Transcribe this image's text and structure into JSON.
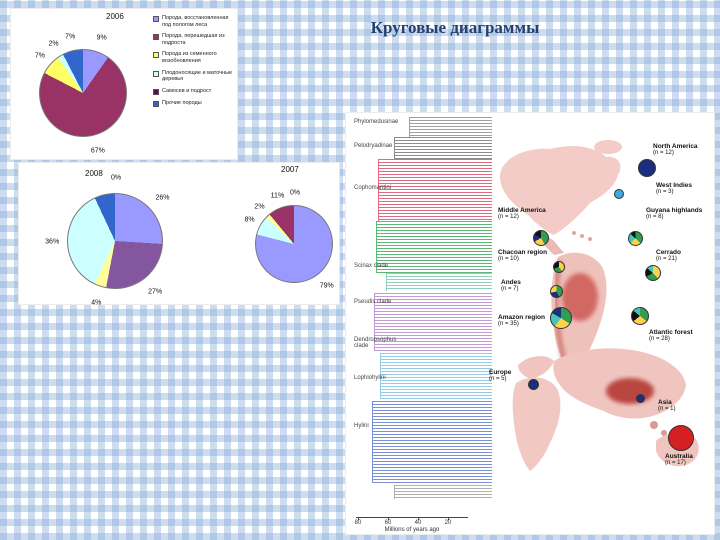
{
  "slide": {
    "title": "Круговые диаграммы"
  },
  "chart_data": [
    {
      "type": "pie",
      "title": "2006",
      "slices": [
        {
          "label": "9%",
          "value": 9,
          "color": "#9999FF"
        },
        {
          "label": "67%",
          "value": 67,
          "color": "#993366"
        },
        {
          "label": "7%",
          "value": 7,
          "color": "#FFFF66"
        },
        {
          "label": "2%",
          "value": 2,
          "color": "#CCFFFF"
        },
        {
          "label": "7%",
          "value": 7,
          "color": "#3366CC"
        }
      ],
      "legend": [
        {
          "label": "Порода, восстановленная под пологом леса",
          "color": "#9999FF"
        },
        {
          "label": "Порода, перешедшая из подроста",
          "color": "#993366"
        },
        {
          "label": "Порода из семенного возобновления",
          "color": "#FFFF66"
        },
        {
          "label": "Плодоносящие и маточные деревья",
          "color": "#CCFFFF"
        },
        {
          "label": "Самосев и подрост",
          "color": "#660066"
        },
        {
          "label": "Прочие породы",
          "color": "#3366CC"
        }
      ]
    },
    {
      "type": "pie",
      "title": "2008",
      "slices": [
        {
          "label": "26%",
          "value": 26,
          "color": "#9999FF"
        },
        {
          "label": "27%",
          "value": 27,
          "color": "#8456A0"
        },
        {
          "label": "4%",
          "value": 4,
          "color": "#FFFF99"
        },
        {
          "label": "36%",
          "value": 36,
          "color": "#CCFFFF"
        },
        {
          "label": "",
          "value": 7,
          "color": "#3366CC"
        },
        {
          "label": "0%",
          "value": 0,
          "color": "#660066"
        }
      ]
    },
    {
      "type": "pie",
      "title": "2007",
      "slices": [
        {
          "label": "79%",
          "value": 79,
          "color": "#9999FF"
        },
        {
          "label": "8%",
          "value": 8,
          "color": "#CCFFFF"
        },
        {
          "label": "2%",
          "value": 2,
          "color": "#FFFF99"
        },
        {
          "label": "11%",
          "value": 11,
          "color": "#993366"
        },
        {
          "label": "0%",
          "value": 0,
          "color": "#3366CC"
        }
      ]
    }
  ],
  "figure": {
    "tree": {
      "clades": [
        {
          "label": "Phylomedusinae"
        },
        {
          "label": "Pelodryadinae"
        },
        {
          "label": "Cophomantini"
        },
        {
          "label": "Scinax clade"
        },
        {
          "label": "Pseudis clade"
        },
        {
          "label": "Dendropsophus clade"
        },
        {
          "label": "Lophiohylini"
        },
        {
          "label": "Hylini"
        }
      ],
      "axis": {
        "ticks": [
          "80",
          "60",
          "40",
          "20"
        ],
        "label": "Millions of years ago"
      }
    },
    "map": {
      "regions": [
        {
          "name": "North America",
          "n": "(n = 12)",
          "pie": [
            {
              "value": 12,
              "color": "#1b2f7e"
            }
          ]
        },
        {
          "name": "West Indies",
          "n": "(n = 3)",
          "pie": [
            {
              "value": 3,
              "color": "#3fa9e0"
            }
          ]
        },
        {
          "name": "Middle America",
          "n": "(n = 12)",
          "pie": [
            {
              "value": 5,
              "color": "#2f9e50"
            },
            {
              "value": 3,
              "color": "#ffd24a"
            },
            {
              "value": 2,
              "color": "#1b2f7e"
            },
            {
              "value": 2,
              "color": "#111111"
            }
          ]
        },
        {
          "name": "Guyana highlands",
          "n": "(n = 8)",
          "pie": [
            {
              "value": 3,
              "color": "#2f9e50"
            },
            {
              "value": 2,
              "color": "#ffd24a"
            },
            {
              "value": 2,
              "color": "#49c3b5"
            },
            {
              "value": 1,
              "color": "#111111"
            }
          ]
        },
        {
          "name": "Chacoan region",
          "n": "(n = 10)",
          "pie": [
            {
              "value": 4,
              "color": "#ffd24a"
            },
            {
              "value": 3,
              "color": "#2f9e50"
            },
            {
              "value": 3,
              "color": "#111111"
            }
          ]
        },
        {
          "name": "Cerrado",
          "n": "(n = 21)",
          "pie": [
            {
              "value": 8,
              "color": "#ffd24a"
            },
            {
              "value": 6,
              "color": "#2f9e50"
            },
            {
              "value": 4,
              "color": "#111111"
            },
            {
              "value": 3,
              "color": "#49c3b5"
            }
          ]
        },
        {
          "name": "Andes",
          "n": "(n = 7)",
          "pie": [
            {
              "value": 3,
              "color": "#2f9e50"
            },
            {
              "value": 2,
              "color": "#1b2f7e"
            },
            {
              "value": 2,
              "color": "#ffd24a"
            }
          ]
        },
        {
          "name": "Amazon region",
          "n": "(n = 35)",
          "pie": [
            {
              "value": 12,
              "color": "#2f9e50"
            },
            {
              "value": 9,
              "color": "#ffd24a"
            },
            {
              "value": 8,
              "color": "#49c3b5"
            },
            {
              "value": 6,
              "color": "#1b2f7e"
            }
          ]
        },
        {
          "name": "Atlantic forest",
          "n": "(n = 28)",
          "pie": [
            {
              "value": 10,
              "color": "#2f9e50"
            },
            {
              "value": 8,
              "color": "#ffd24a"
            },
            {
              "value": 6,
              "color": "#111111"
            },
            {
              "value": 4,
              "color": "#49c3b5"
            }
          ]
        },
        {
          "name": "Europe",
          "n": "(n = 5)",
          "pie": [
            {
              "value": 5,
              "color": "#1b2f7e"
            }
          ]
        },
        {
          "name": "Asia",
          "n": "(n = 1)",
          "pie": [
            {
              "value": 1,
              "color": "#1b2f7e"
            }
          ]
        },
        {
          "name": "Australia",
          "n": "(n = 17)",
          "pie": [
            {
              "value": 17,
              "color": "#d42020"
            }
          ]
        }
      ]
    }
  }
}
